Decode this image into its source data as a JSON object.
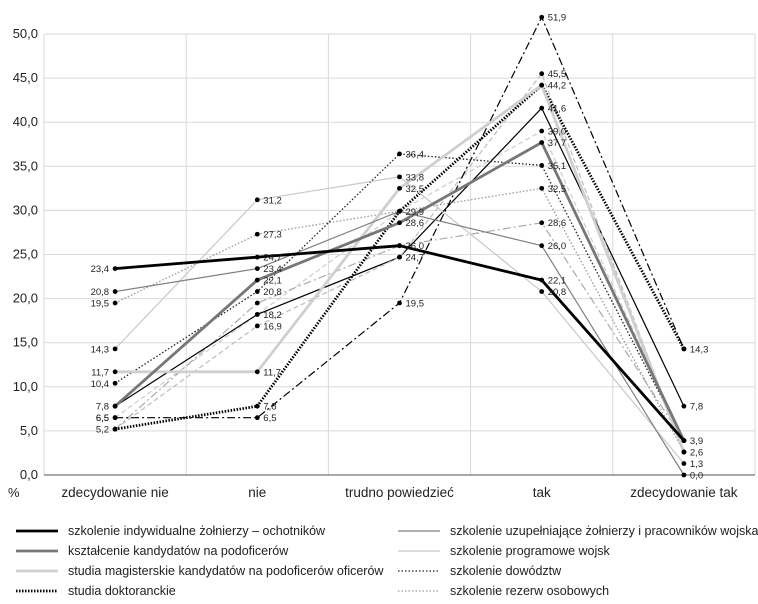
{
  "chart_data": {
    "type": "line",
    "title": "",
    "xlabel": "",
    "ylabel": "%",
    "ylim": [
      0,
      50
    ],
    "yticks": [
      "0,0",
      "5,0",
      "10,0",
      "15,0",
      "20,0",
      "25,0",
      "30,0",
      "35,0",
      "40,0",
      "45,0",
      "50,0"
    ],
    "categories": [
      "zdecydowanie nie",
      "nie",
      "trudno powiedzieć",
      "tak",
      "zdecydowanie tak"
    ],
    "grid": true,
    "legend_position": "bottom",
    "series": [
      {
        "name": "szkolenie indywidualne żołnierzy – ochotników",
        "values": [
          23.4,
          24.7,
          26.0,
          22.1,
          3.9
        ],
        "labels": [
          "23,4",
          "24,7",
          "26,0",
          "22,1",
          "3,9"
        ],
        "color": "#000000",
        "style": "solid-thick"
      },
      {
        "name": "szkolenie uzupełniające żołnierzy i pracowników wojska",
        "values": [
          20.8,
          23.4,
          29.9,
          26.0,
          0.0
        ],
        "labels": [
          "20,8",
          "23,4",
          "",
          "26,0",
          "0,0"
        ],
        "color": "#808080",
        "style": "solid"
      },
      {
        "name": "kształcenie kandydatów na podoficerów",
        "values": [
          7.8,
          22.1,
          28.6,
          37.7,
          3.9
        ],
        "labels": [
          "7,8",
          "22,1",
          "28,6",
          "37,7",
          ""
        ],
        "color": "#777777",
        "style": "solid-thick"
      },
      {
        "name": "szkolenie programowe wojsk",
        "values": [
          14.3,
          31.2,
          33.8,
          20.8,
          1.3
        ],
        "labels": [
          "14,3",
          "31,2",
          "33,8",
          "20,8",
          "1,3"
        ],
        "color": "#c8c8c8",
        "style": "solid"
      },
      {
        "name": "studia magisterskie kandydatów na podoficerów oficerów",
        "values": [
          11.7,
          11.7,
          32.5,
          44.2,
          2.6
        ],
        "labels": [
          "11,7",
          "11,7",
          "32,5",
          "",
          "2,6"
        ],
        "color": "#cfcfcf",
        "style": "solid-thick"
      },
      {
        "name": "szkolenie dowództw",
        "values": [
          10.4,
          20.8,
          36.4,
          35.1,
          3.9
        ],
        "labels": [
          "10,4",
          "20,8",
          "36,4",
          "35,1",
          ""
        ],
        "color": "#222222",
        "style": "dotted"
      },
      {
        "name": "studia doktoranckie",
        "values": [
          5.2,
          7.8,
          29.9,
          44.2,
          14.3
        ],
        "labels": [
          "5,2",
          "7,8",
          "29,9",
          "44,2",
          ""
        ],
        "color": "#000000",
        "style": "dotted-thick"
      },
      {
        "name": "szkolenie rezerw osobowych",
        "values": [
          19.5,
          27.3,
          29.9,
          32.5,
          2.6
        ],
        "labels": [
          "19,5",
          "27,3",
          "",
          "32,5",
          ""
        ],
        "color": "#999999",
        "style": "dotted-grey"
      },
      {
        "name": "",
        "values": [
          6.5,
          6.5,
          19.5,
          51.9,
          14.3
        ],
        "labels": [
          "6,5",
          "6,5",
          "19,5",
          "51,9",
          "14,3"
        ],
        "color": "#000000",
        "style": "dashdot"
      },
      {
        "name": "",
        "values": [
          5.2,
          16.9,
          24.7,
          45.5,
          2.6
        ],
        "labels": [
          "",
          "16,9",
          "24,7",
          "45,5",
          ""
        ],
        "color": "#bbbbbb",
        "style": "dashed-light"
      },
      {
        "name": "",
        "values": [
          7.8,
          18.2,
          24.7,
          41.6,
          7.8
        ],
        "labels": [
          "",
          "18,2",
          "",
          "41,6",
          "7,8"
        ],
        "color": "#000000",
        "style": "solid"
      },
      {
        "name": "",
        "values": [
          5.2,
          19.5,
          26.0,
          28.6,
          3.9
        ],
        "labels": [
          "",
          "",
          "",
          "28,6",
          ""
        ],
        "color": "#aaaaaa",
        "style": "dashdot-light"
      },
      {
        "name": "",
        "values": [
          6.5,
          18.2,
          29.9,
          39.0,
          3.9
        ],
        "labels": [
          "6,5",
          "",
          "",
          "39,0",
          ""
        ],
        "color": "#cccccc",
        "style": "dashed-light"
      }
    ],
    "legend_entries": [
      {
        "name": "szkolenie indywidualne żołnierzy – ochotników",
        "style": "solid-thick",
        "color": "#000000"
      },
      {
        "name": "szkolenie uzupełniające żołnierzy i pracowników wojska",
        "style": "solid",
        "color": "#808080"
      },
      {
        "name": "kształcenie kandydatów na podoficerów",
        "style": "solid-thick",
        "color": "#777777"
      },
      {
        "name": "szkolenie programowe wojsk",
        "style": "solid",
        "color": "#c8c8c8"
      },
      {
        "name": "studia magisterskie kandydatów na podoficerów oficerów",
        "style": "solid-thick",
        "color": "#cfcfcf"
      },
      {
        "name": "szkolenie dowództw",
        "style": "dotted",
        "color": "#222222"
      },
      {
        "name": "studia doktoranckie",
        "style": "dotted-thick",
        "color": "#000000"
      },
      {
        "name": "szkolenie rezerw osobowych",
        "style": "dotted-grey",
        "color": "#999999"
      }
    ]
  }
}
